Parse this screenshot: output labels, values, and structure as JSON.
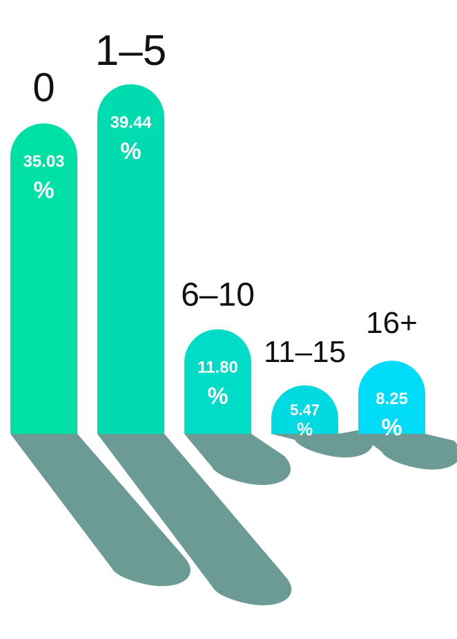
{
  "chart_data": {
    "type": "bar",
    "title": "",
    "xlabel": "",
    "ylabel": "",
    "categories": [
      "0",
      "1–5",
      "6–10",
      "11–15",
      "16+"
    ],
    "values": [
      35.03,
      39.44,
      11.8,
      5.47,
      8.25
    ],
    "value_labels": [
      "35.03",
      "39.44",
      "11.80",
      "5.47",
      "8.25"
    ],
    "unit_symbol": "%",
    "ylim": [
      0,
      40
    ],
    "grid": false,
    "legend": "none",
    "colors": {
      "bars": [
        "#00e0a4",
        "#00dcb0",
        "#00dcc8",
        "#00dae0",
        "#00dcf8"
      ],
      "shadow": "#6b9b94",
      "label": "#111111",
      "value_text": "#ffffff"
    }
  }
}
